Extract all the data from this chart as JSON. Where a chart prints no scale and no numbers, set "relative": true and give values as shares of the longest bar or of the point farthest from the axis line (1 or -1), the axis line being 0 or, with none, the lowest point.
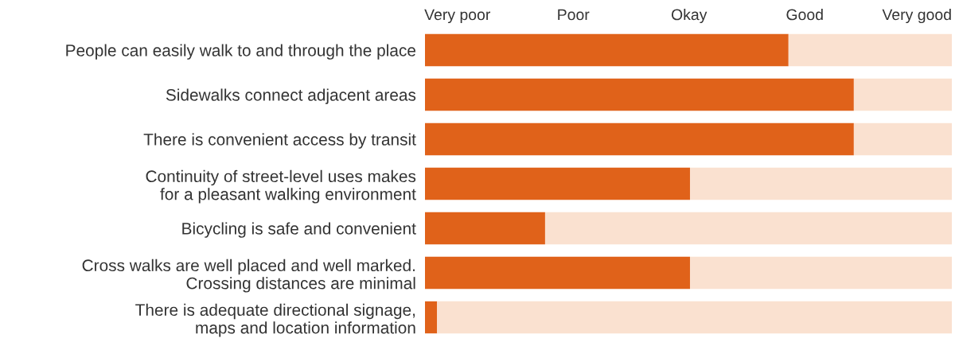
{
  "chart_data": {
    "type": "bar",
    "orientation": "horizontal",
    "stacked": true,
    "relative": true,
    "categories": [
      "People can easily walk to and through the place",
      "Sidewalks connect adjacent areas",
      "There is convenient access by transit",
      "Continuity of street-level uses makes\nfor a pleasant walking environment",
      "Bicycling is safe and convenient",
      "Cross walks are well placed and well marked.\nCrossing distances are minimal",
      "There is adequate directional signage,\nmaps and location information"
    ],
    "series": [
      {
        "color": "#e0621a",
        "values": [
          0.69,
          0.814,
          0.814,
          0.503,
          0.228,
          0.503,
          0.023
        ]
      },
      {
        "color": "#fae1d0",
        "values": [
          0.31,
          0.186,
          0.186,
          0.497,
          0.772,
          0.497,
          0.977
        ]
      }
    ],
    "annotations": [
      "Very poor",
      "Poor",
      "Okay",
      "Good",
      "Very good"
    ]
  }
}
